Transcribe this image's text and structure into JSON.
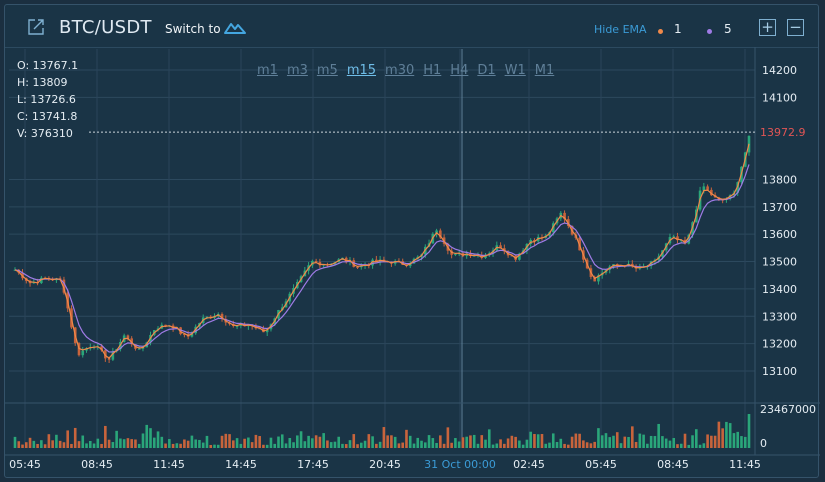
{
  "header": {
    "pair": "BTC/USDT",
    "switch_label": "Switch to",
    "hide_ema_label": "Hide EMA",
    "ema": [
      {
        "value": "1",
        "color": "#f0894a"
      },
      {
        "value": "5",
        "color": "#9f7be6"
      }
    ],
    "zoom_in": "+",
    "zoom_out": "−"
  },
  "ohlcv": [
    "O: 13767.1",
    "H: 13809",
    "L: 13726.6",
    "C: 13741.8",
    "V: 376310"
  ],
  "timeframes": [
    "m1",
    "m3",
    "m5",
    "m15",
    "m30",
    "H1",
    "H4",
    "D1",
    "W1",
    "M1"
  ],
  "active_timeframe": "m15",
  "chart_data": {
    "type": "candlestick",
    "y_ticks": [
      "14200",
      "14100",
      "13800",
      "13700",
      "13600",
      "13500",
      "13400",
      "13300",
      "13200",
      "13100"
    ],
    "y_range": [
      13060,
      14250
    ],
    "current_price": "13972.9",
    "volume_ticks": [
      "23467000",
      "0"
    ],
    "x_labels": [
      "05:45",
      "08:45",
      "11:45",
      "14:45",
      "17:45",
      "20:45",
      "31 Oct 00:00",
      "02:45",
      "05:45",
      "08:45",
      "11:45"
    ],
    "crosshair_label": "31 Oct 00:00",
    "price_keypoints": [
      13470,
      13420,
      13440,
      13430,
      13160,
      13200,
      13140,
      13230,
      13170,
      13260,
      13270,
      13220,
      13290,
      13310,
      13260,
      13270,
      13240,
      13330,
      13410,
      13500,
      13490,
      13510,
      13480,
      13500,
      13500,
      13490,
      13520,
      13620,
      13520,
      13530,
      13520,
      13560,
      13510,
      13580,
      13590,
      13680,
      13570,
      13430,
      13480,
      13490,
      13470,
      13500,
      13590,
      13560,
      13780,
      13720,
      13740,
      13950
    ],
    "colors": {
      "up": "#2aa67a",
      "down": "#c8643c",
      "ema1": "#f0894a",
      "ema5": "#9f7be6",
      "price_line": "#e05555"
    }
  }
}
